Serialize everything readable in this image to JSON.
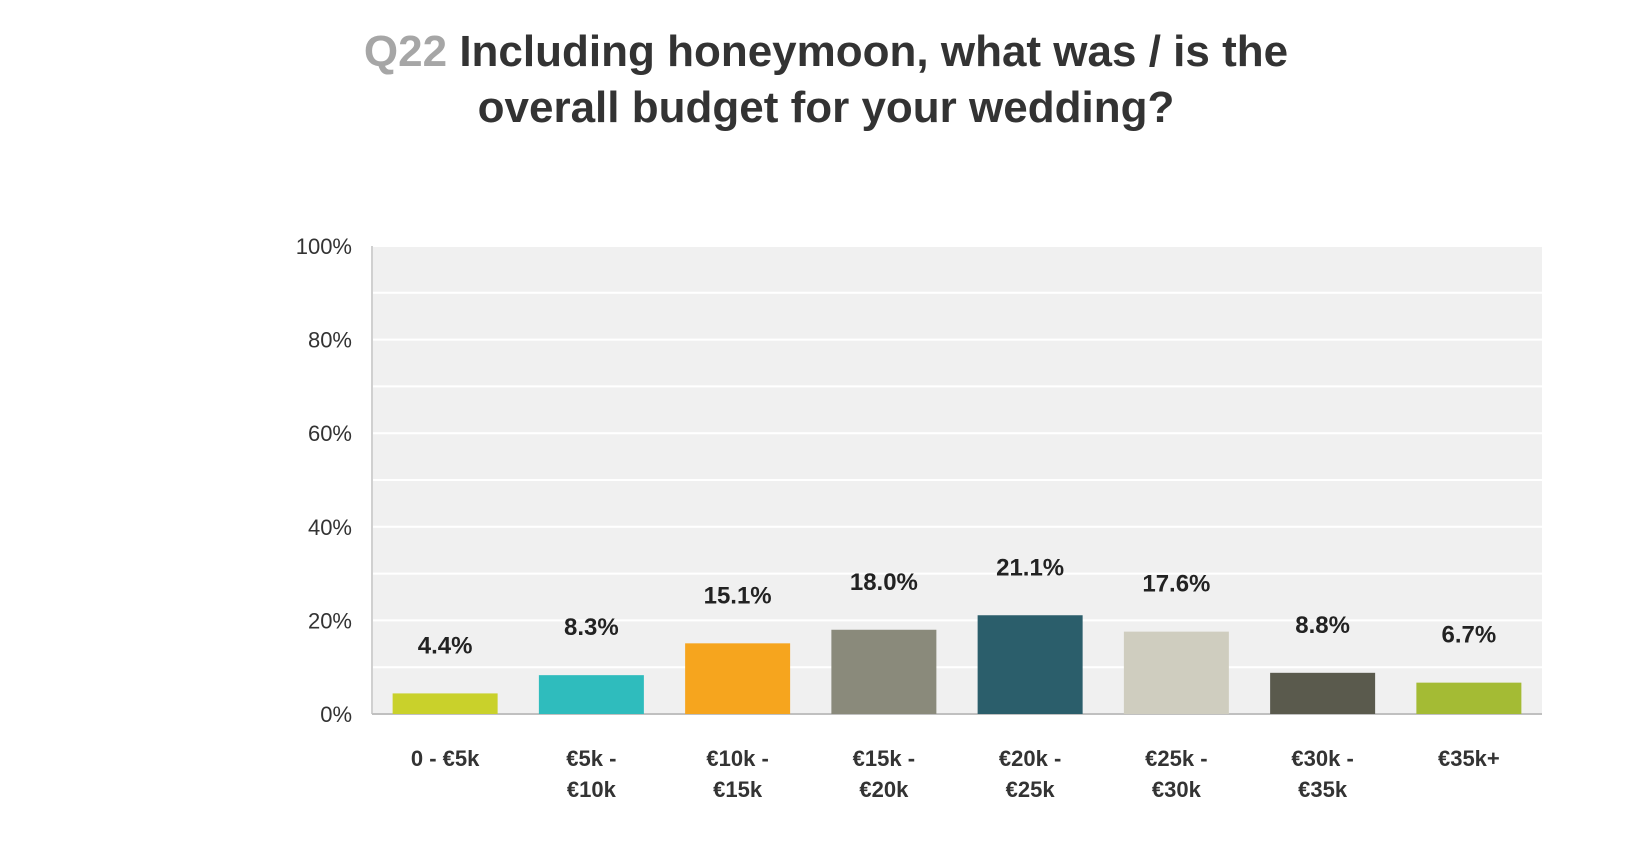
{
  "chart_data": {
    "type": "bar",
    "title_prefix": "Q22",
    "title_line1": "Including honeymoon, what was / is the",
    "title_line2": "overall budget for your wedding?",
    "xlabel": "",
    "ylabel": "",
    "ylim": [
      0,
      100
    ],
    "y_ticks": [
      0,
      20,
      40,
      60,
      80,
      100
    ],
    "y_tick_labels": [
      "0%",
      "20%",
      "40%",
      "60%",
      "80%",
      "100%"
    ],
    "grid": true,
    "legend": "none",
    "categories": [
      [
        "0 - €5k"
      ],
      [
        "€5k -",
        "€10k"
      ],
      [
        "€10k -",
        "€15k"
      ],
      [
        "€15k -",
        "€20k"
      ],
      [
        "€20k -",
        "€25k"
      ],
      [
        "€25k -",
        "€30k"
      ],
      [
        "€30k -",
        "€35k"
      ],
      [
        "€35k+"
      ]
    ],
    "values": [
      4.4,
      8.3,
      15.1,
      18.0,
      21.1,
      17.6,
      8.8,
      6.7
    ],
    "value_labels": [
      "4.4%",
      "8.3%",
      "15.1%",
      "18.0%",
      "21.1%",
      "17.6%",
      "8.8%",
      "6.7%"
    ],
    "colors": [
      "#c9d12b",
      "#2fbcbd",
      "#f6a51e",
      "#8a8a7b",
      "#2b5e6b",
      "#cfcdbf",
      "#5a5a4d",
      "#a4bb34"
    ],
    "plot_background": "#f0f0f0",
    "grid_color": "#ffffff"
  }
}
